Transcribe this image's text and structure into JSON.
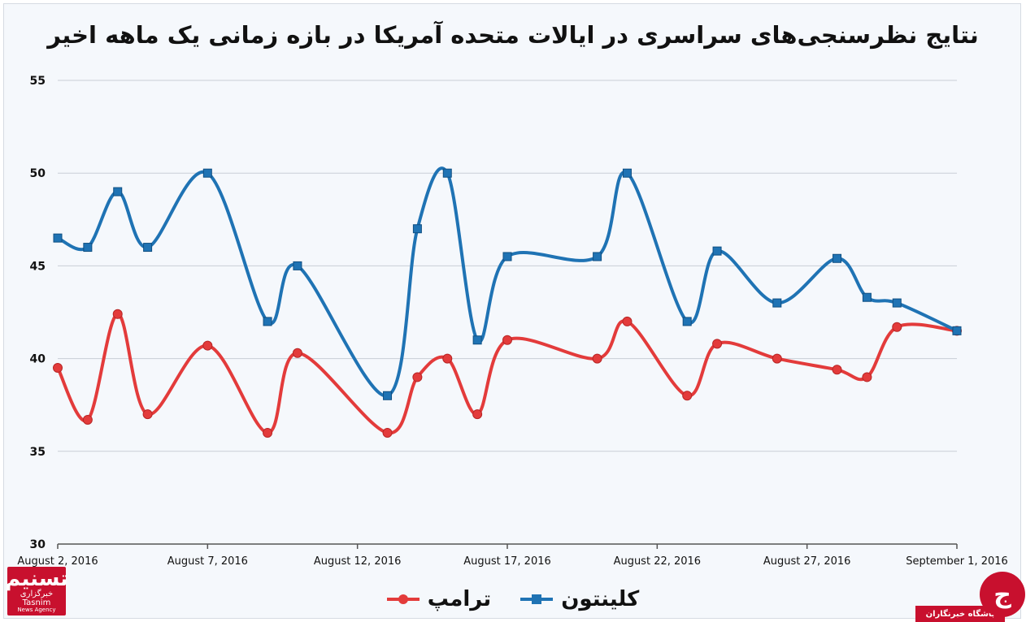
{
  "chart_data": {
    "type": "line",
    "title": "نتایج نظرسنجی‌های سراسری در ایالات متحده آمریکا در بازه زمانی یک ماهه اخیر",
    "xlabel": "",
    "ylabel": "",
    "ylim": [
      30,
      55
    ],
    "yticks": [
      30,
      35,
      40,
      45,
      50,
      55
    ],
    "xlim": [
      "2016-08-02",
      "2016-09-01"
    ],
    "xticks": [
      "August 2, 2016",
      "August 7, 2016",
      "August 12, 2016",
      "August 17, 2016",
      "August 22, 2016",
      "August 27, 2016",
      "September 1, 2016"
    ],
    "grid": true,
    "legend": "bottom",
    "series": [
      {
        "name": "کلینتون",
        "color": "#1f73b4",
        "x": [
          "2016-08-02",
          "2016-08-03",
          "2016-08-04",
          "2016-08-05",
          "2016-08-07",
          "2016-08-09",
          "2016-08-10",
          "2016-08-13",
          "2016-08-14",
          "2016-08-15",
          "2016-08-16",
          "2016-08-17",
          "2016-08-20",
          "2016-08-21",
          "2016-08-23",
          "2016-08-24",
          "2016-08-26",
          "2016-08-28",
          "2016-08-29",
          "2016-08-30",
          "2016-09-01"
        ],
        "values": [
          46.5,
          46,
          49,
          46,
          50,
          42,
          45,
          38,
          47,
          50,
          41,
          45.5,
          45.5,
          50,
          42,
          45.8,
          43,
          45.4,
          43.3,
          43,
          41.5
        ]
      },
      {
        "name": "ترامپ",
        "color": "#e33b3b",
        "x": [
          "2016-08-02",
          "2016-08-03",
          "2016-08-04",
          "2016-08-05",
          "2016-08-07",
          "2016-08-09",
          "2016-08-10",
          "2016-08-13",
          "2016-08-14",
          "2016-08-15",
          "2016-08-16",
          "2016-08-17",
          "2016-08-20",
          "2016-08-21",
          "2016-08-23",
          "2016-08-24",
          "2016-08-26",
          "2016-08-28",
          "2016-08-29",
          "2016-08-30",
          "2016-09-01"
        ],
        "values": [
          39.5,
          36.7,
          42.4,
          37,
          40.7,
          36,
          40.3,
          36,
          39,
          40,
          37,
          41,
          40,
          42,
          38,
          40.8,
          40,
          39.4,
          39,
          41.7,
          41.5
        ]
      }
    ]
  },
  "watermarks": {
    "tasnim_main": "تسنیم",
    "tasnim_sub": "خبرگزاری",
    "tasnim_en": "Tasnim",
    "tasnim_en2": "News Agency",
    "club_text": "باشگاه خبرنگاران",
    "club_icon": "ج"
  }
}
